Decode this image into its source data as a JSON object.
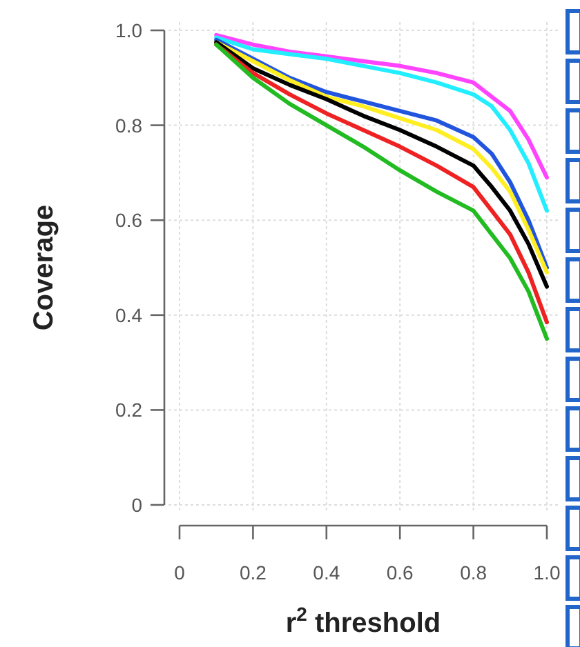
{
  "chart_data": {
    "type": "line",
    "xlabel": "r$^{2}$ threshold",
    "ylabel": "Coverage",
    "x": [
      0.1,
      0.2,
      0.3,
      0.4,
      0.5,
      0.6,
      0.7,
      0.8,
      0.85,
      0.9,
      0.95,
      1.0
    ],
    "series": [
      {
        "color": "#ff44ff",
        "values": [
          0.99,
          0.97,
          0.955,
          0.945,
          0.935,
          0.925,
          0.91,
          0.89,
          0.86,
          0.83,
          0.77,
          0.69
        ]
      },
      {
        "color": "#22eeff",
        "values": [
          0.985,
          0.96,
          0.95,
          0.94,
          0.925,
          0.91,
          0.89,
          0.865,
          0.84,
          0.79,
          0.72,
          0.62
        ]
      },
      {
        "color": "#2255dd",
        "values": [
          0.98,
          0.94,
          0.9,
          0.87,
          0.85,
          0.83,
          0.81,
          0.775,
          0.74,
          0.68,
          0.6,
          0.5
        ]
      },
      {
        "color": "#ffee22",
        "values": [
          0.975,
          0.935,
          0.895,
          0.86,
          0.84,
          0.815,
          0.79,
          0.75,
          0.71,
          0.66,
          0.58,
          0.49
        ]
      },
      {
        "color": "#000000",
        "values": [
          0.975,
          0.92,
          0.885,
          0.855,
          0.82,
          0.79,
          0.755,
          0.715,
          0.67,
          0.62,
          0.55,
          0.46
        ]
      },
      {
        "color": "#ee2222",
        "values": [
          0.97,
          0.91,
          0.865,
          0.825,
          0.79,
          0.755,
          0.715,
          0.67,
          0.62,
          0.57,
          0.49,
          0.385
        ]
      },
      {
        "color": "#22bb22",
        "values": [
          0.97,
          0.9,
          0.845,
          0.8,
          0.755,
          0.705,
          0.66,
          0.62,
          0.57,
          0.52,
          0.45,
          0.35
        ]
      }
    ],
    "xlim": [
      0,
      1
    ],
    "xticks": [
      0,
      0.2,
      0.4,
      0.6,
      0.8,
      {
        "value": 1,
        "label": "1.0"
      }
    ],
    "ylim": [
      0,
      1
    ],
    "yticks": [
      0,
      0.2,
      0.4,
      0.6,
      0.8,
      {
        "value": 1,
        "label": "1.0"
      }
    ],
    "grid": true,
    "line_style": "solid",
    "marker": "none"
  }
}
